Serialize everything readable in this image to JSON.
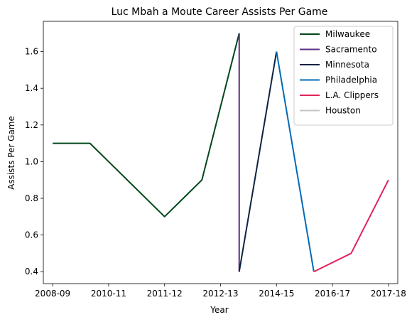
{
  "chart_data": {
    "type": "line",
    "title": "Luc Mbah a Moute Career Assists Per Game",
    "xlabel": "Year",
    "ylabel": "Assists Per Game",
    "x_tick_labels": [
      "2008-09",
      "2010-11",
      "2011-12",
      "2012-13",
      "2014-15",
      "2016-17",
      "2017-18"
    ],
    "xlim": [
      -0.25,
      9.25
    ],
    "ylim": [
      0.335,
      1.765
    ],
    "y_ticks": [
      0.4,
      0.6,
      0.8,
      1.0,
      1.2,
      1.4,
      1.6
    ],
    "y_tick_labels": [
      "0.4",
      "0.6",
      "0.8",
      "1.0",
      "1.2",
      "1.4",
      "1.6"
    ],
    "grid": false,
    "legend_position": "top-right",
    "series": [
      {
        "name": "Milwaukee",
        "color": "#00471b",
        "points": [
          [
            0,
            1.1
          ],
          [
            1,
            1.1
          ],
          [
            2,
            0.9
          ],
          [
            3,
            0.7
          ],
          [
            4,
            0.9
          ],
          [
            5,
            1.7
          ]
        ]
      },
      {
        "name": "Sacramento",
        "color": "#5a2d81",
        "points": [
          [
            5,
            1.7
          ],
          [
            5,
            0.4
          ]
        ]
      },
      {
        "name": "Minnesota",
        "color": "#0c2340",
        "points": [
          [
            5,
            0.4
          ],
          [
            6,
            1.6
          ]
        ]
      },
      {
        "name": "Philadelphia",
        "color": "#006bb6",
        "points": [
          [
            6,
            1.6
          ],
          [
            7,
            0.4
          ]
        ]
      },
      {
        "name": "L.A. Clippers",
        "color": "#e2245b",
        "points": [
          [
            7,
            0.4
          ],
          [
            8,
            0.5
          ],
          [
            9,
            0.9
          ]
        ]
      },
      {
        "name": "Houston",
        "color": "#c4c4c4",
        "points": []
      }
    ]
  }
}
